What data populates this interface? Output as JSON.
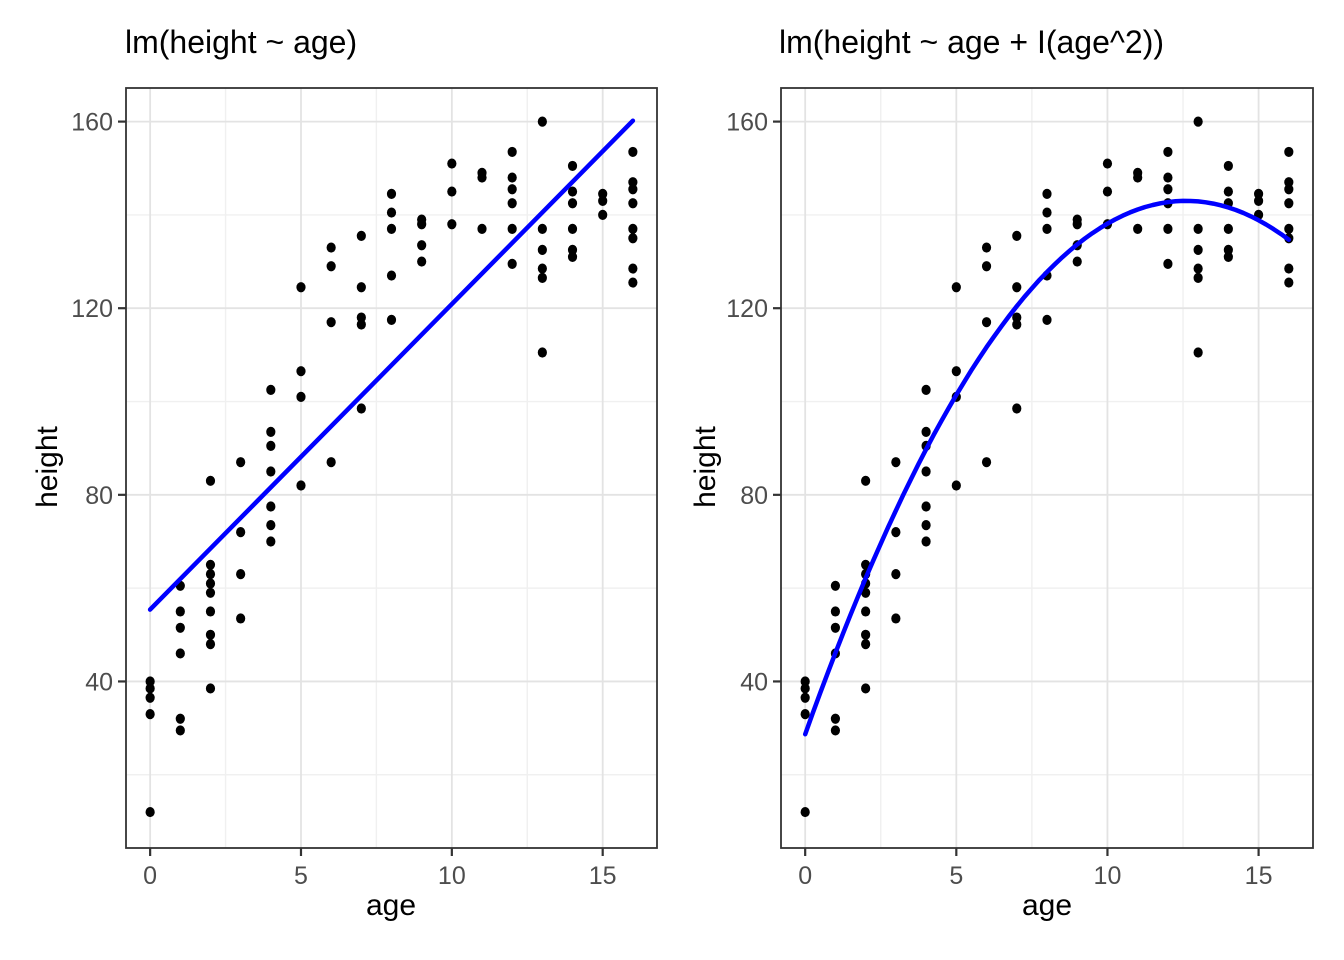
{
  "colors": {
    "point": "#000000",
    "fit_line": "#0000FF",
    "grid_major": "#E3E3E3",
    "grid_minor": "#F0F0F0",
    "panel_border": "#333333",
    "panel_background": "#FFFFFF",
    "tick_mark": "#333333",
    "tick_label": "#4D4D4D",
    "text": "#000000",
    "background": "#FFFFFF"
  },
  "chart_data": [
    {
      "type": "scatter",
      "title": "lm(height ~ age)",
      "xlabel": "age",
      "ylabel": "height",
      "xlim": [
        -0.8,
        16.8
      ],
      "ylim": [
        4.3,
        167.2
      ],
      "x_ticks": [
        0,
        5,
        10,
        15
      ],
      "y_ticks": [
        40,
        80,
        120,
        160
      ],
      "x_minor": [
        2.5,
        7.5,
        12.5
      ],
      "y_minor": [
        20,
        60,
        100,
        140
      ],
      "grid": true,
      "legend": "none",
      "fit_line": {
        "type": "linear",
        "x_range": [
          0,
          16
        ],
        "intercept": 55.4,
        "slope": 6.55,
        "color": "#0000FF"
      },
      "points": [
        [
          0,
          40
        ],
        [
          0,
          38.5
        ],
        [
          0,
          36.5
        ],
        [
          0,
          33
        ],
        [
          0,
          12
        ],
        [
          1,
          60.5
        ],
        [
          1,
          55
        ],
        [
          1,
          51.5
        ],
        [
          1,
          46
        ],
        [
          1,
          32
        ],
        [
          1,
          29.5
        ],
        [
          2,
          83
        ],
        [
          2,
          65
        ],
        [
          2,
          63
        ],
        [
          2,
          61
        ],
        [
          2,
          59
        ],
        [
          2,
          55
        ],
        [
          2,
          50
        ],
        [
          2,
          48
        ],
        [
          2,
          38.5
        ],
        [
          3,
          87
        ],
        [
          3,
          72
        ],
        [
          3,
          63
        ],
        [
          3,
          53.5
        ],
        [
          4,
          102.5
        ],
        [
          4,
          93.5
        ],
        [
          4,
          90.5
        ],
        [
          4,
          85
        ],
        [
          4,
          77.5
        ],
        [
          4,
          73.5
        ],
        [
          4,
          70
        ],
        [
          5,
          124.5
        ],
        [
          5,
          106.5
        ],
        [
          5,
          101
        ],
        [
          5,
          82
        ],
        [
          6,
          133
        ],
        [
          6,
          129
        ],
        [
          6,
          117
        ],
        [
          6,
          87
        ],
        [
          7,
          135.5
        ],
        [
          7,
          124.5
        ],
        [
          7,
          118
        ],
        [
          7,
          116.5
        ],
        [
          7,
          98.5
        ],
        [
          8,
          144.5
        ],
        [
          8,
          140.5
        ],
        [
          8,
          137
        ],
        [
          8,
          127
        ],
        [
          8,
          117.5
        ],
        [
          9,
          139
        ],
        [
          9,
          138
        ],
        [
          9,
          133.5
        ],
        [
          9,
          130
        ],
        [
          10,
          151
        ],
        [
          10,
          145
        ],
        [
          10,
          138
        ],
        [
          11,
          149
        ],
        [
          11,
          148
        ],
        [
          11,
          137
        ],
        [
          12,
          153.5
        ],
        [
          12,
          148
        ],
        [
          12,
          145.5
        ],
        [
          12,
          142.5
        ],
        [
          12,
          137
        ],
        [
          12,
          129.5
        ],
        [
          13,
          160
        ],
        [
          13,
          137
        ],
        [
          13,
          132.5
        ],
        [
          13,
          128.5
        ],
        [
          13,
          126.5
        ],
        [
          13,
          110.5
        ],
        [
          14,
          150.5
        ],
        [
          14,
          145
        ],
        [
          14,
          142.5
        ],
        [
          14,
          137
        ],
        [
          14,
          132.5
        ],
        [
          14,
          131
        ],
        [
          15,
          144.5
        ],
        [
          15,
          143
        ],
        [
          15,
          140
        ],
        [
          16,
          153.5
        ],
        [
          16,
          147
        ],
        [
          16,
          145.5
        ],
        [
          16,
          142.5
        ],
        [
          16,
          137
        ],
        [
          16,
          135
        ],
        [
          16,
          128.5
        ],
        [
          16,
          125.5
        ]
      ]
    },
    {
      "type": "scatter",
      "title": "lm(height ~ age + I(age^2))",
      "xlabel": "age",
      "ylabel": "height",
      "xlim": [
        -0.8,
        16.8
      ],
      "ylim": [
        4.3,
        167.2
      ],
      "x_ticks": [
        0,
        5,
        10,
        15
      ],
      "y_ticks": [
        40,
        80,
        120,
        160
      ],
      "x_minor": [
        2.5,
        7.5,
        12.5
      ],
      "y_minor": [
        20,
        60,
        100,
        140
      ],
      "grid": true,
      "legend": "none",
      "fit_line": {
        "type": "quadratic",
        "x_range": [
          0,
          16
        ],
        "vertex": [
          12.6,
          143
        ],
        "a": -0.72,
        "color": "#0000FF"
      },
      "points": [
        [
          0,
          40
        ],
        [
          0,
          38.5
        ],
        [
          0,
          36.5
        ],
        [
          0,
          33
        ],
        [
          0,
          12
        ],
        [
          1,
          60.5
        ],
        [
          1,
          55
        ],
        [
          1,
          51.5
        ],
        [
          1,
          46
        ],
        [
          1,
          32
        ],
        [
          1,
          29.5
        ],
        [
          2,
          83
        ],
        [
          2,
          65
        ],
        [
          2,
          63
        ],
        [
          2,
          61
        ],
        [
          2,
          59
        ],
        [
          2,
          55
        ],
        [
          2,
          50
        ],
        [
          2,
          48
        ],
        [
          2,
          38.5
        ],
        [
          3,
          87
        ],
        [
          3,
          72
        ],
        [
          3,
          63
        ],
        [
          3,
          53.5
        ],
        [
          4,
          102.5
        ],
        [
          4,
          93.5
        ],
        [
          4,
          90.5
        ],
        [
          4,
          85
        ],
        [
          4,
          77.5
        ],
        [
          4,
          73.5
        ],
        [
          4,
          70
        ],
        [
          5,
          124.5
        ],
        [
          5,
          106.5
        ],
        [
          5,
          101
        ],
        [
          5,
          82
        ],
        [
          6,
          133
        ],
        [
          6,
          129
        ],
        [
          6,
          117
        ],
        [
          6,
          87
        ],
        [
          7,
          135.5
        ],
        [
          7,
          124.5
        ],
        [
          7,
          118
        ],
        [
          7,
          116.5
        ],
        [
          7,
          98.5
        ],
        [
          8,
          144.5
        ],
        [
          8,
          140.5
        ],
        [
          8,
          137
        ],
        [
          8,
          127
        ],
        [
          8,
          117.5
        ],
        [
          9,
          139
        ],
        [
          9,
          138
        ],
        [
          9,
          133.5
        ],
        [
          9,
          130
        ],
        [
          10,
          151
        ],
        [
          10,
          145
        ],
        [
          10,
          138
        ],
        [
          11,
          149
        ],
        [
          11,
          148
        ],
        [
          11,
          137
        ],
        [
          12,
          153.5
        ],
        [
          12,
          148
        ],
        [
          12,
          145.5
        ],
        [
          12,
          142.5
        ],
        [
          12,
          137
        ],
        [
          12,
          129.5
        ],
        [
          13,
          160
        ],
        [
          13,
          137
        ],
        [
          13,
          132.5
        ],
        [
          13,
          128.5
        ],
        [
          13,
          126.5
        ],
        [
          13,
          110.5
        ],
        [
          14,
          150.5
        ],
        [
          14,
          145
        ],
        [
          14,
          142.5
        ],
        [
          14,
          137
        ],
        [
          14,
          132.5
        ],
        [
          14,
          131
        ],
        [
          15,
          144.5
        ],
        [
          15,
          143
        ],
        [
          15,
          140
        ],
        [
          16,
          153.5
        ],
        [
          16,
          147
        ],
        [
          16,
          145.5
        ],
        [
          16,
          142.5
        ],
        [
          16,
          137
        ],
        [
          16,
          135
        ],
        [
          16,
          128.5
        ],
        [
          16,
          125.5
        ]
      ]
    }
  ]
}
